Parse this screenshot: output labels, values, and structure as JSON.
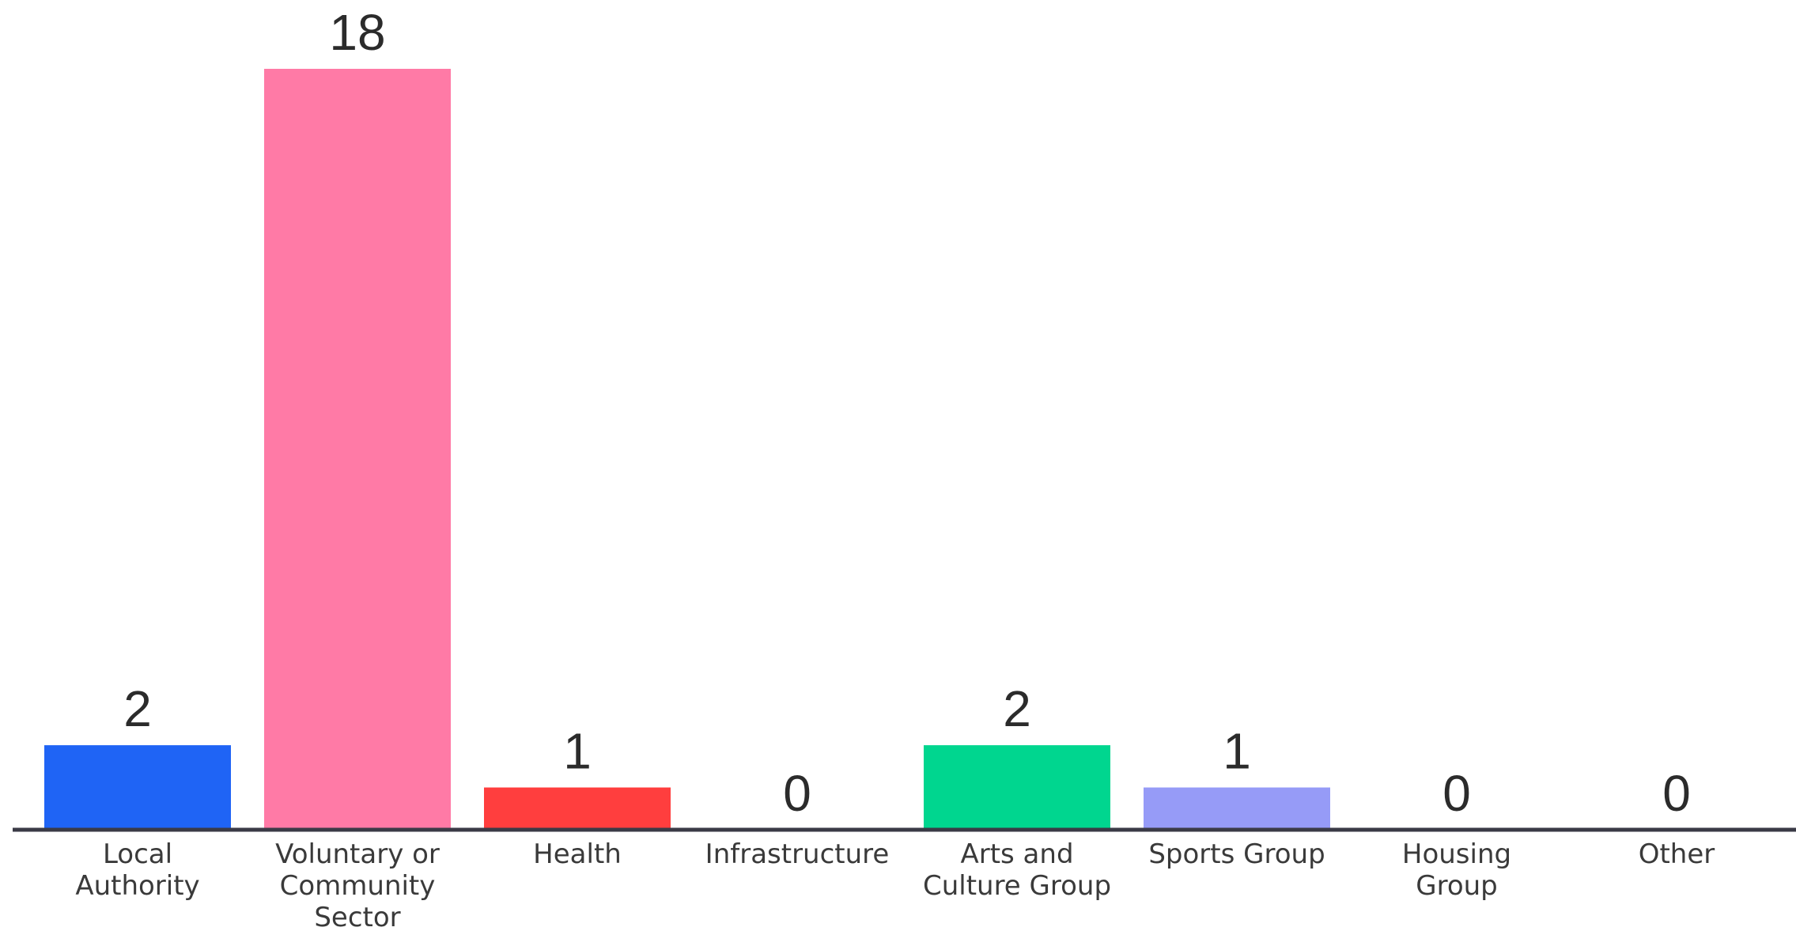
{
  "chart_data": {
    "type": "bar",
    "title": "",
    "xlabel": "",
    "ylabel": "",
    "categories": [
      "Local Authority",
      "Voluntary or Community Sector",
      "Health",
      "Infrastructure",
      "Arts and Culture Group",
      "Sports Group",
      "Housing Group",
      "Other"
    ],
    "category_label_lines": [
      [
        "Local",
        "Authority"
      ],
      [
        "Voluntary or",
        "Community",
        "Sector"
      ],
      [
        "Health"
      ],
      [
        "Infrastructure"
      ],
      [
        "Arts and",
        "Culture Group"
      ],
      [
        "Sports Group"
      ],
      [
        "Housing",
        "Group"
      ],
      [
        "Other"
      ]
    ],
    "values": [
      2,
      18,
      1,
      0,
      2,
      1,
      0,
      0
    ],
    "value_labels": [
      "2",
      "18",
      "1",
      "0",
      "2",
      "1",
      "0",
      "0"
    ],
    "colors": [
      "#1f64f5",
      "#ff7aa6",
      "#ff3e3e",
      "#f0a030",
      "#00d68f",
      "#969bf7",
      "#7ab8ff",
      "#b0b0b0"
    ],
    "ylim": [
      0,
      18
    ],
    "grid": false,
    "legend": "none",
    "baseline_color": "#3a3a46"
  }
}
